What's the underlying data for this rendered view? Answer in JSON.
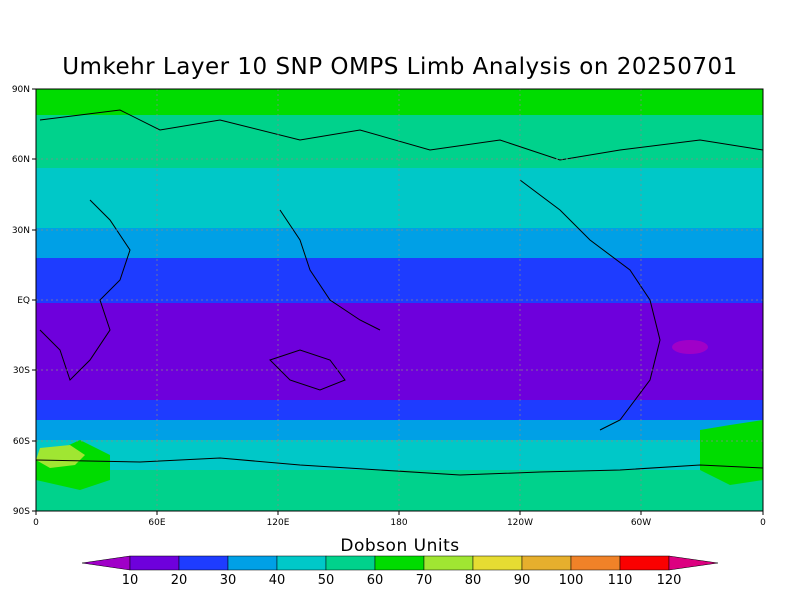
{
  "title": "Umkehr Layer 10 SNP OMPS Limb Analysis on 20250701",
  "colorbar": {
    "title": "Dobson Units",
    "labels": [
      "10",
      "20",
      "30",
      "40",
      "50",
      "60",
      "70",
      "80",
      "90",
      "100",
      "110",
      "120"
    ],
    "colors": [
      "#a000c8",
      "#6e00dc",
      "#1e3cff",
      "#00a0e6",
      "#00c8c8",
      "#00d28c",
      "#00dc00",
      "#a0e632",
      "#e6dc32",
      "#e6af2d",
      "#f08228",
      "#fa0000",
      "#dc0080"
    ]
  },
  "map": {
    "lat_labels": [
      "90N",
      "60N",
      "30N",
      "EQ",
      "30S",
      "60S",
      "90S"
    ],
    "lon_labels": [
      "0",
      "60E",
      "120E",
      "180",
      "120W",
      "60W",
      "0"
    ]
  },
  "chart_data": {
    "type": "heatmap",
    "title": "Umkehr Layer 10 SNP OMPS Limb Analysis on 20250701",
    "unit": "Dobson Units",
    "x_range": [
      "0",
      "0"
    ],
    "y_range": [
      "90S",
      "90N"
    ],
    "levels": [
      10,
      20,
      30,
      40,
      50,
      60,
      70,
      80,
      90,
      100,
      110,
      120
    ],
    "latitude_bands_approx": [
      {
        "lat_range": "70N-90N",
        "value_class": "60-70"
      },
      {
        "lat_range": "55N-70N",
        "value_class": "50-60"
      },
      {
        "lat_range": "45N-55N",
        "value_class": "40-50"
      },
      {
        "lat_range": "35N-45N",
        "value_class": "30-40"
      },
      {
        "lat_range": "25N-35N",
        "value_class": "20-30"
      },
      {
        "lat_range": "25N-25S",
        "value_class": "10-20"
      },
      {
        "lat_range": "25S-35S",
        "value_class": "20-30"
      },
      {
        "lat_range": "35S-45S",
        "value_class": "30-40"
      },
      {
        "lat_range": "45S-70S",
        "value_class": "40-50"
      },
      {
        "lat_range": "70S-90S",
        "value_class": "50-60"
      }
    ],
    "features": [
      {
        "lat": -23,
        "lon": -36,
        "value_class": "<10"
      },
      {
        "lat": -65,
        "lon": 10,
        "value_class": "70-80"
      }
    ]
  }
}
